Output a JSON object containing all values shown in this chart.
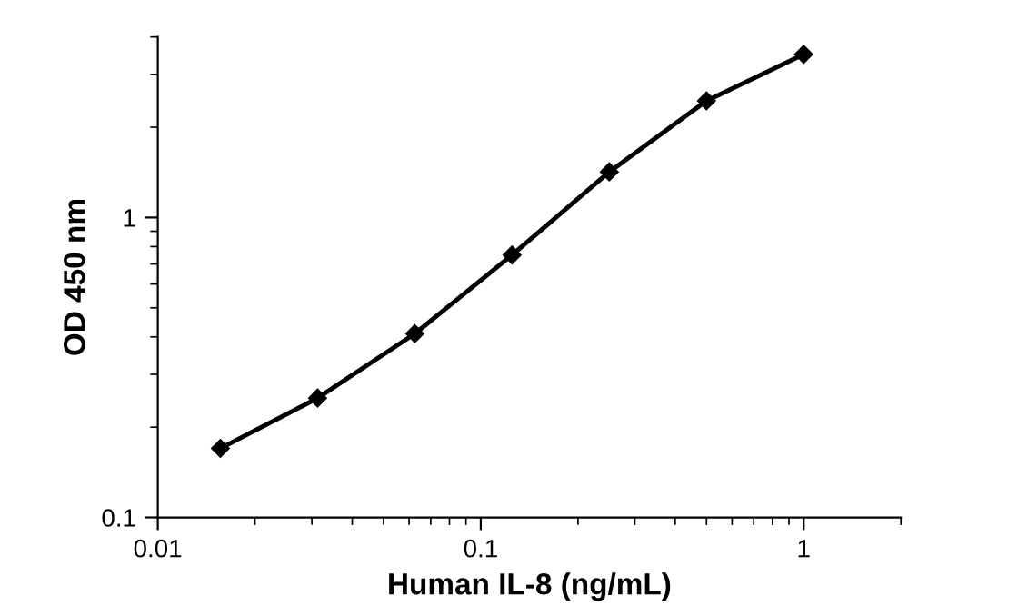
{
  "chart_data": {
    "type": "line",
    "xlabel": "Human IL-8 (ng/mL)",
    "ylabel": "OD 450 nm",
    "x": [
      0.015625,
      0.03125,
      0.0625,
      0.125,
      0.25,
      0.5,
      1
    ],
    "series": [
      {
        "color": "#000000",
        "values": [
          0.17,
          0.25,
          0.41,
          0.75,
          1.42,
          2.45,
          3.5
        ]
      }
    ],
    "log": "xy",
    "xlim": [
      0.01,
      2
    ],
    "ylim": [
      0.1,
      4
    ],
    "xticks": [
      0.01,
      0.1,
      1
    ],
    "yticks": [
      0.1,
      1
    ],
    "marker": "diamond",
    "line_style": "solid",
    "grid": false,
    "legend": false
  }
}
